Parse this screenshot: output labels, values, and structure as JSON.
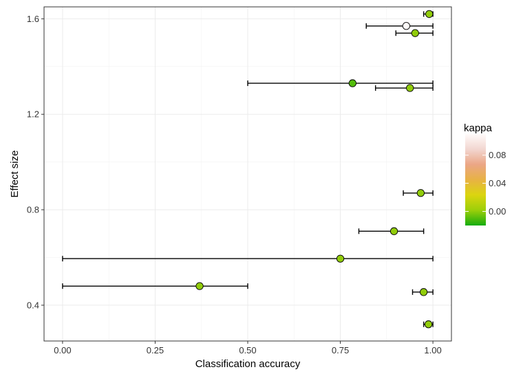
{
  "chart_data": {
    "type": "scatter",
    "title": "",
    "xlabel": "Classification accuracy",
    "ylabel": "Effect size",
    "xlim": [
      -0.05,
      1.05
    ],
    "ylim": [
      0.25,
      1.65
    ],
    "x_ticks": [
      0.0,
      0.25,
      0.5,
      0.75,
      1.0
    ],
    "x_tick_labels": [
      "0.00",
      "0.25",
      "0.50",
      "0.75",
      "1.00"
    ],
    "y_ticks": [
      0.4,
      0.8,
      1.2,
      1.6
    ],
    "y_tick_labels": [
      "0.4",
      "0.8",
      "1.2",
      "1.6"
    ],
    "grid": true,
    "points": [
      {
        "x": 0.99,
        "y": 1.62,
        "xmin": 0.975,
        "xmax": 1.0,
        "kappa": 0.0
      },
      {
        "x": 0.928,
        "y": 1.57,
        "xmin": 0.82,
        "xmax": 1.0,
        "kappa": 0.11
      },
      {
        "x": 0.952,
        "y": 1.54,
        "xmin": 0.9,
        "xmax": 1.0,
        "kappa": 0.0
      },
      {
        "x": 0.783,
        "y": 1.33,
        "xmin": 0.5,
        "xmax": 1.0,
        "kappa": -0.01
      },
      {
        "x": 0.938,
        "y": 1.31,
        "xmin": 0.845,
        "xmax": 1.0,
        "kappa": 0.0
      },
      {
        "x": 0.967,
        "y": 0.87,
        "xmin": 0.92,
        "xmax": 1.0,
        "kappa": 0.0
      },
      {
        "x": 0.895,
        "y": 0.71,
        "xmin": 0.8,
        "xmax": 0.975,
        "kappa": 0.0
      },
      {
        "x": 0.75,
        "y": 0.595,
        "xmin": 0.0,
        "xmax": 1.0,
        "kappa": 0.0
      },
      {
        "x": 0.37,
        "y": 0.48,
        "xmin": 0.0,
        "xmax": 0.5,
        "kappa": 0.0
      },
      {
        "x": 0.975,
        "y": 0.455,
        "xmin": 0.945,
        "xmax": 1.0,
        "kappa": 0.0
      },
      {
        "x": 0.988,
        "y": 0.32,
        "xmin": 0.975,
        "xmax": 1.0,
        "kappa": 0.0
      }
    ],
    "legend": {
      "title": "kappa",
      "position": "right",
      "range": [
        -0.02,
        0.11
      ],
      "ticks": [
        0.0,
        0.04,
        0.08
      ],
      "tick_labels": [
        "0.00",
        "0.04",
        "0.08"
      ],
      "colors": [
        "#16ac0c",
        "#9bcf0a",
        "#dbd50f",
        "#e8b244",
        "#eba685",
        "#f2d6d0",
        "#fffbfa"
      ]
    }
  }
}
